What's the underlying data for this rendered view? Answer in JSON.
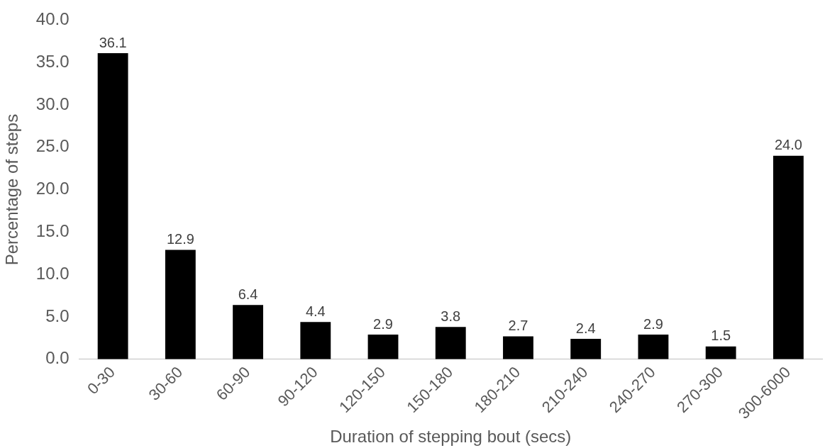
{
  "chart_data": {
    "type": "bar",
    "xlabel": "Duration of stepping bout (secs)",
    "ylabel": "Percentage of steps",
    "categories": [
      "0-30",
      "30-60",
      "60-90",
      "90-120",
      "120-150",
      "150-180",
      "180-210",
      "210-240",
      "240-270",
      "270-300",
      "300-6000"
    ],
    "values": [
      36.1,
      12.9,
      6.4,
      4.4,
      2.9,
      3.8,
      2.7,
      2.4,
      2.9,
      1.5,
      24.0
    ],
    "value_labels": [
      "36.1",
      "12.9",
      "6.4",
      "4.4",
      "2.9",
      "3.8",
      "2.7",
      "2.4",
      "2.9",
      "1.5",
      "24.0"
    ],
    "color": "#000000",
    "ylim": [
      0,
      40
    ],
    "yticks": [
      {
        "value": 0,
        "label": "0.0"
      },
      {
        "value": 5,
        "label": "5.0"
      },
      {
        "value": 10,
        "label": "10.0"
      },
      {
        "value": 15,
        "label": "15.0"
      },
      {
        "value": 20,
        "label": "20.0"
      },
      {
        "value": 25,
        "label": "25.0"
      },
      {
        "value": 30,
        "label": "30.0"
      },
      {
        "value": 35,
        "label": "35.0"
      },
      {
        "value": 40,
        "label": "40.0"
      }
    ],
    "grid": false,
    "legend": false
  }
}
